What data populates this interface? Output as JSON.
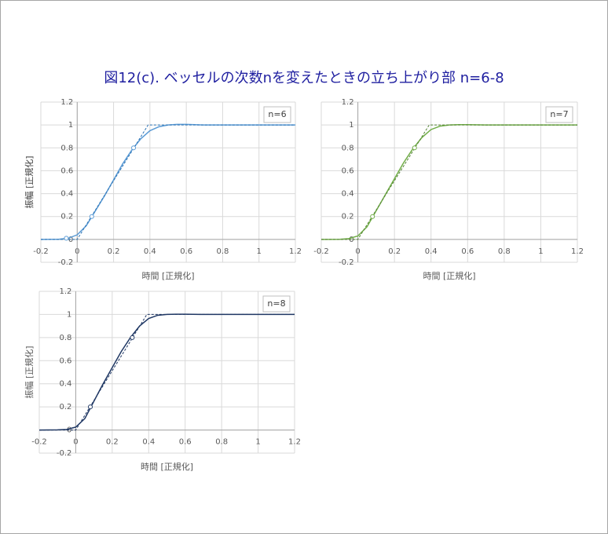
{
  "title": "図12(c). ベッセルの次数nを変えたときの立ち上がり部 n=6-8",
  "chart_data": [
    {
      "type": "line",
      "annotation": "n=6",
      "xlabel": "時間 [正規化]",
      "ylabel": "振幅 [正規化]",
      "xlim": [
        -0.2,
        1.2
      ],
      "ylim": [
        -0.2,
        1.2
      ],
      "xticks": [
        -0.2,
        0,
        0.2,
        0.4,
        0.6,
        0.8,
        1,
        1.2
      ],
      "yticks": [
        -0.2,
        0,
        0.2,
        0.4,
        0.6,
        0.8,
        1,
        1.2
      ],
      "grid": true,
      "series": [
        {
          "style": "solid",
          "color": "#5b9bd5",
          "x": [
            -0.2,
            -0.1,
            -0.05,
            0,
            0.05,
            0.1,
            0.15,
            0.2,
            0.25,
            0.3,
            0.35,
            0.4,
            0.45,
            0.5,
            0.55,
            0.6,
            0.7,
            0.8,
            1,
            1.2
          ],
          "values": [
            0,
            0.002,
            0.01,
            0.04,
            0.12,
            0.25,
            0.38,
            0.52,
            0.66,
            0.78,
            0.88,
            0.95,
            0.985,
            1,
            1.005,
            1.005,
            1,
            1,
            1,
            1
          ]
        },
        {
          "style": "dashed",
          "color": "#2e75b6",
          "x": [
            -0.2,
            0,
            0.39,
            1.2
          ],
          "values": [
            0,
            0,
            1,
            1
          ]
        },
        {
          "style": "marker",
          "color": "#5b9bd5",
          "x": [
            -0.06,
            0.08,
            0.31
          ],
          "values": [
            0.01,
            0.2,
            0.8
          ]
        }
      ]
    },
    {
      "type": "line",
      "annotation": "n=7",
      "xlabel": "時間 [正規化]",
      "ylabel": "振幅 [正規化]",
      "xlim": [
        -0.2,
        1.2
      ],
      "ylim": [
        -0.2,
        1.2
      ],
      "xticks": [
        -0.2,
        0,
        0.2,
        0.4,
        0.6,
        0.8,
        1,
        1.2
      ],
      "yticks": [
        -0.2,
        0,
        0.2,
        0.4,
        0.6,
        0.8,
        1,
        1.2
      ],
      "grid": true,
      "series": [
        {
          "style": "solid",
          "color": "#70ad47",
          "x": [
            -0.2,
            -0.1,
            -0.05,
            0,
            0.05,
            0.1,
            0.15,
            0.2,
            0.25,
            0.3,
            0.35,
            0.4,
            0.45,
            0.5,
            0.55,
            0.6,
            0.7,
            0.8,
            1,
            1.2
          ],
          "values": [
            0,
            0.001,
            0.007,
            0.03,
            0.11,
            0.25,
            0.39,
            0.53,
            0.67,
            0.79,
            0.89,
            0.96,
            0.99,
            1,
            1.003,
            1.003,
            1,
            1,
            1,
            1
          ]
        },
        {
          "style": "dashed",
          "color": "#548235",
          "x": [
            -0.2,
            0,
            0.39,
            1.2
          ],
          "values": [
            0,
            0,
            1,
            1
          ]
        },
        {
          "style": "marker",
          "color": "#70ad47",
          "x": [
            0.08,
            0.31
          ],
          "values": [
            0.2,
            0.8
          ]
        }
      ]
    },
    {
      "type": "line",
      "annotation": "n=8",
      "xlabel": "時間 [正規化]",
      "ylabel": "振幅 [正規化]",
      "xlim": [
        -0.2,
        1.2
      ],
      "ylim": [
        -0.2,
        1.2
      ],
      "xticks": [
        -0.2,
        0,
        0.2,
        0.4,
        0.6,
        0.8,
        1,
        1.2
      ],
      "yticks": [
        -0.2,
        0,
        0.2,
        0.4,
        0.6,
        0.8,
        1,
        1.2
      ],
      "grid": true,
      "series": [
        {
          "style": "solid",
          "color": "#203864",
          "x": [
            -0.2,
            -0.1,
            -0.05,
            0,
            0.05,
            0.1,
            0.15,
            0.2,
            0.25,
            0.3,
            0.35,
            0.4,
            0.45,
            0.5,
            0.55,
            0.6,
            0.7,
            0.8,
            1,
            1.2
          ],
          "values": [
            0,
            0.001,
            0.005,
            0.025,
            0.1,
            0.25,
            0.4,
            0.54,
            0.68,
            0.8,
            0.9,
            0.965,
            0.993,
            1,
            1.002,
            1.002,
            1,
            1,
            1,
            1
          ]
        },
        {
          "style": "dashed",
          "color": "#203864",
          "x": [
            -0.2,
            0,
            0.39,
            1.2
          ],
          "values": [
            0,
            0,
            1,
            1
          ]
        },
        {
          "style": "marker",
          "color": "#203864",
          "x": [
            0.08,
            0.31
          ],
          "values": [
            0.2,
            0.8
          ]
        }
      ]
    }
  ]
}
